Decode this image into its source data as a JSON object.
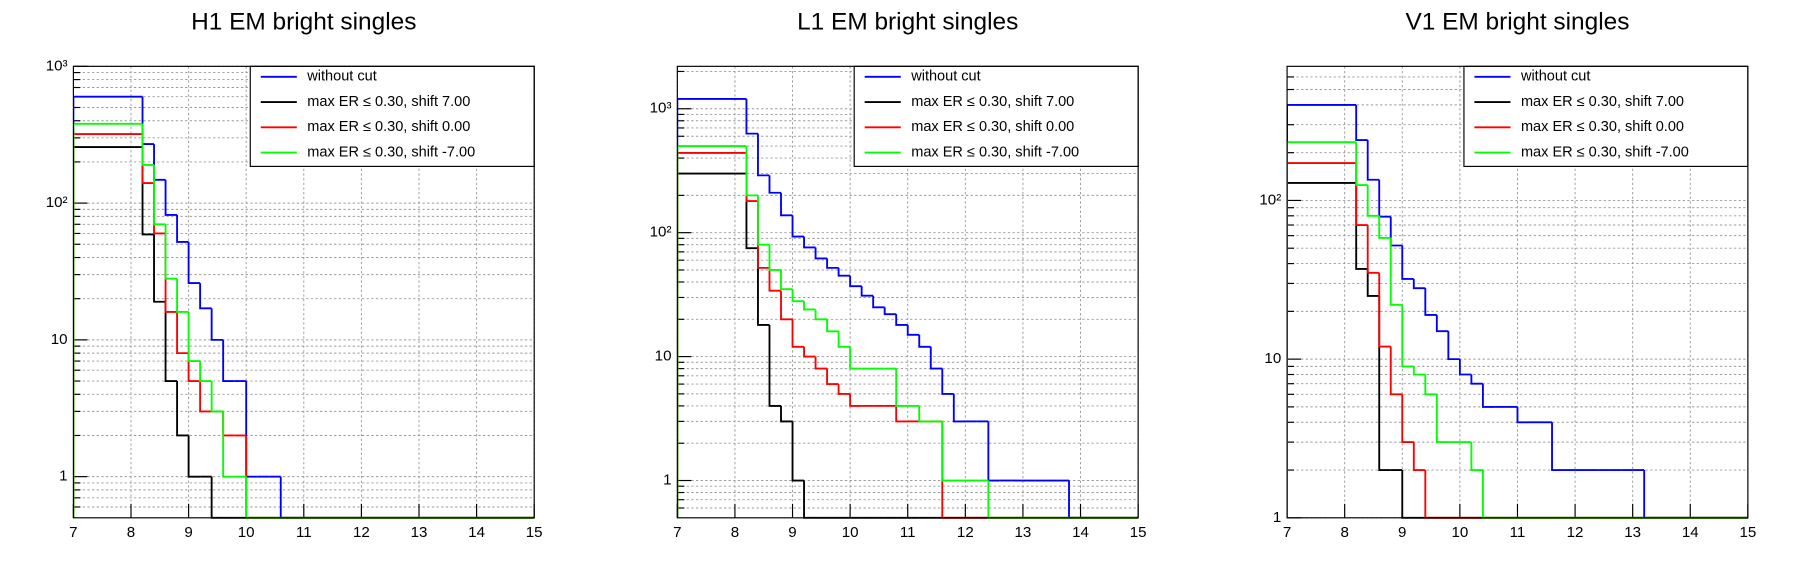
{
  "chart_data": [
    {
      "type": "histogram",
      "title": "H1 EM bright singles",
      "bins": [
        7,
        8.2,
        8.4,
        8.6,
        8.8,
        9,
        9.2,
        9.4,
        9.6,
        9.8,
        10,
        10.2,
        10.4,
        10.6,
        10.8,
        11,
        11.2,
        11.4,
        11.6,
        11.8,
        12,
        12.2,
        12.4,
        12.6,
        12.8,
        13,
        13.2,
        13.4,
        13.6,
        13.8,
        14,
        14.2,
        14.4,
        14.6,
        14.8,
        15
      ],
      "series": [
        {
          "name": "without cut",
          "color": "#0000ff",
          "values": [
            600,
            270,
            148,
            82,
            52,
            26,
            17,
            10,
            5,
            5,
            1,
            1,
            1,
            0,
            0,
            0,
            0,
            0,
            0,
            0,
            0,
            0,
            0,
            0,
            0,
            0,
            0,
            0,
            0,
            0,
            0,
            0,
            0,
            0,
            0
          ]
        },
        {
          "name": "max ER ≤ 0.30, shift 7.00",
          "color": "#000000",
          "values": [
            257,
            59,
            19,
            5,
            2,
            1,
            1,
            0,
            0,
            0,
            0,
            0,
            0,
            0,
            0,
            0,
            0,
            0,
            0,
            0,
            0,
            0,
            0,
            0,
            0,
            0,
            0,
            0,
            0,
            0,
            0,
            0,
            0,
            0,
            0
          ]
        },
        {
          "name": "max ER ≤ 0.30, shift 0.00",
          "color": "#ff0000",
          "values": [
            320,
            140,
            60,
            16,
            8,
            5,
            3,
            3,
            2,
            2,
            0,
            0,
            0,
            0,
            0,
            0,
            0,
            0,
            0,
            0,
            0,
            0,
            0,
            0,
            0,
            0,
            0,
            0,
            0,
            0,
            0,
            0,
            0,
            0,
            0
          ]
        },
        {
          "name": "max ER ≤ 0.30, shift -7.00",
          "color": "#00ff00",
          "values": [
            380,
            190,
            70,
            28,
            16,
            7,
            5,
            3,
            1,
            1,
            0,
            0,
            0,
            0,
            0,
            0,
            0,
            0,
            0,
            0,
            0,
            0,
            0,
            0,
            0,
            0,
            0,
            0,
            0,
            0,
            0,
            0,
            0,
            0,
            0
          ]
        }
      ],
      "xlim": [
        7,
        15
      ],
      "xticks": [
        7,
        8,
        9,
        10,
        11,
        12,
        13,
        14,
        15
      ],
      "ylim": [
        0.5,
        1000
      ],
      "yticks": [
        1,
        10,
        {
          "value": 100,
          "label": "10²"
        },
        {
          "value": 1000,
          "label": "10³"
        }
      ],
      "log_y": true,
      "grid": true,
      "legend": "upper right"
    },
    {
      "type": "histogram",
      "title": "L1 EM bright singles",
      "bins": [
        7,
        8.2,
        8.4,
        8.6,
        8.8,
        9,
        9.2,
        9.4,
        9.6,
        9.8,
        10,
        10.2,
        10.4,
        10.6,
        10.8,
        11,
        11.2,
        11.4,
        11.6,
        11.8,
        12,
        12.2,
        12.4,
        12.6,
        12.8,
        13,
        13.2,
        13.4,
        13.6,
        13.8,
        14,
        14.2,
        14.4,
        14.6,
        14.8,
        15
      ],
      "series": [
        {
          "name": "without cut",
          "color": "#0000ff",
          "values": [
            1200,
            630,
            290,
            210,
            138,
            93,
            76,
            62,
            52,
            45,
            37,
            31,
            25,
            22,
            18,
            15,
            12,
            8,
            5,
            3,
            3,
            3,
            1,
            1,
            1,
            1,
            1,
            1,
            1,
            0,
            0,
            0,
            0,
            0,
            0
          ]
        },
        {
          "name": "max ER ≤ 0.30, shift 7.00",
          "color": "#000000",
          "values": [
            300,
            75,
            18,
            4,
            3,
            1,
            0,
            0,
            0,
            0,
            0,
            0,
            0,
            0,
            0,
            0,
            0,
            0,
            0,
            0,
            0,
            0,
            0,
            0,
            0,
            0,
            0,
            0,
            0,
            0,
            0,
            0,
            0,
            0,
            0
          ]
        },
        {
          "name": "max ER ≤ 0.30, shift 0.00",
          "color": "#ff0000",
          "values": [
            440,
            180,
            52,
            34,
            20,
            12,
            10,
            8,
            6,
            5,
            4,
            4,
            4,
            4,
            3,
            3,
            3,
            3,
            0,
            0,
            0,
            0,
            0,
            0,
            0,
            0,
            0,
            0,
            0,
            0,
            0,
            0,
            0,
            0,
            0
          ]
        },
        {
          "name": "max ER ≤ 0.30, shift -7.00",
          "color": "#00ff00",
          "values": [
            500,
            200,
            80,
            50,
            35,
            28,
            24,
            20,
            16,
            12,
            8,
            8,
            8,
            8,
            4,
            4,
            3,
            3,
            1,
            1,
            1,
            1,
            0,
            0,
            0,
            0,
            0,
            0,
            0,
            0,
            0,
            0,
            0,
            0,
            0
          ]
        }
      ],
      "xlim": [
        7,
        15
      ],
      "xticks": [
        7,
        8,
        9,
        10,
        11,
        12,
        13,
        14,
        15
      ],
      "ylim": [
        0.5,
        2200
      ],
      "yticks": [
        1,
        10,
        {
          "value": 100,
          "label": "10²"
        },
        {
          "value": 1000,
          "label": "10³"
        }
      ],
      "log_y": true,
      "grid": true,
      "legend": "upper right"
    },
    {
      "type": "histogram",
      "title": "V1 EM bright singles",
      "bins": [
        7,
        8.2,
        8.4,
        8.6,
        8.8,
        9,
        9.2,
        9.4,
        9.6,
        9.8,
        10,
        10.2,
        10.4,
        10.6,
        10.8,
        11,
        11.2,
        11.4,
        11.6,
        11.8,
        12,
        12.2,
        12.4,
        12.6,
        12.8,
        13,
        13.2,
        13.4,
        13.6,
        13.8,
        14,
        14.2,
        14.4,
        14.6,
        14.8,
        15
      ],
      "series": [
        {
          "name": "without cut",
          "color": "#0000ff",
          "values": [
            400,
            240,
            135,
            79,
            52,
            32,
            28,
            19,
            15,
            10,
            8,
            7,
            5,
            5,
            5,
            4,
            4,
            4,
            2,
            2,
            2,
            2,
            2,
            2,
            2,
            2,
            0,
            0,
            0,
            0,
            0,
            0,
            0,
            0,
            0
          ]
        },
        {
          "name": "max ER ≤ 0.30, shift 7.00",
          "color": "#000000",
          "values": [
            129,
            37,
            25,
            2,
            2,
            0,
            0,
            0,
            0,
            0,
            0,
            0,
            0,
            0,
            0,
            0,
            0,
            0,
            0,
            0,
            0,
            0,
            0,
            0,
            0,
            0,
            0,
            0,
            0,
            0,
            0,
            0,
            0,
            0,
            0
          ]
        },
        {
          "name": "max ER ≤ 0.30, shift 0.00",
          "color": "#ff0000",
          "values": [
            172,
            70,
            35,
            12,
            6,
            3,
            2,
            1,
            1,
            1,
            0,
            0,
            0,
            0,
            0,
            0,
            0,
            0,
            0,
            0,
            0,
            0,
            0,
            0,
            0,
            0,
            0,
            0,
            0,
            0,
            0,
            0,
            0,
            0,
            0
          ]
        },
        {
          "name": "max ER ≤ 0.30, shift -7.00",
          "color": "#00ff00",
          "values": [
            233,
            125,
            80,
            58,
            22,
            9,
            8,
            6,
            3,
            3,
            3,
            2,
            0,
            0,
            0,
            0,
            0,
            0,
            0,
            0,
            0,
            0,
            0,
            0,
            0,
            0,
            0,
            0,
            0,
            0,
            0,
            0,
            0,
            0,
            0
          ]
        }
      ],
      "xlim": [
        7,
        15
      ],
      "xticks": [
        7,
        8,
        9,
        10,
        11,
        12,
        13,
        14,
        15
      ],
      "ylim": [
        1,
        700
      ],
      "yticks": [
        1,
        10,
        {
          "value": 100,
          "label": "10²"
        }
      ],
      "log_y": true,
      "grid": true,
      "legend": "upper right"
    }
  ]
}
